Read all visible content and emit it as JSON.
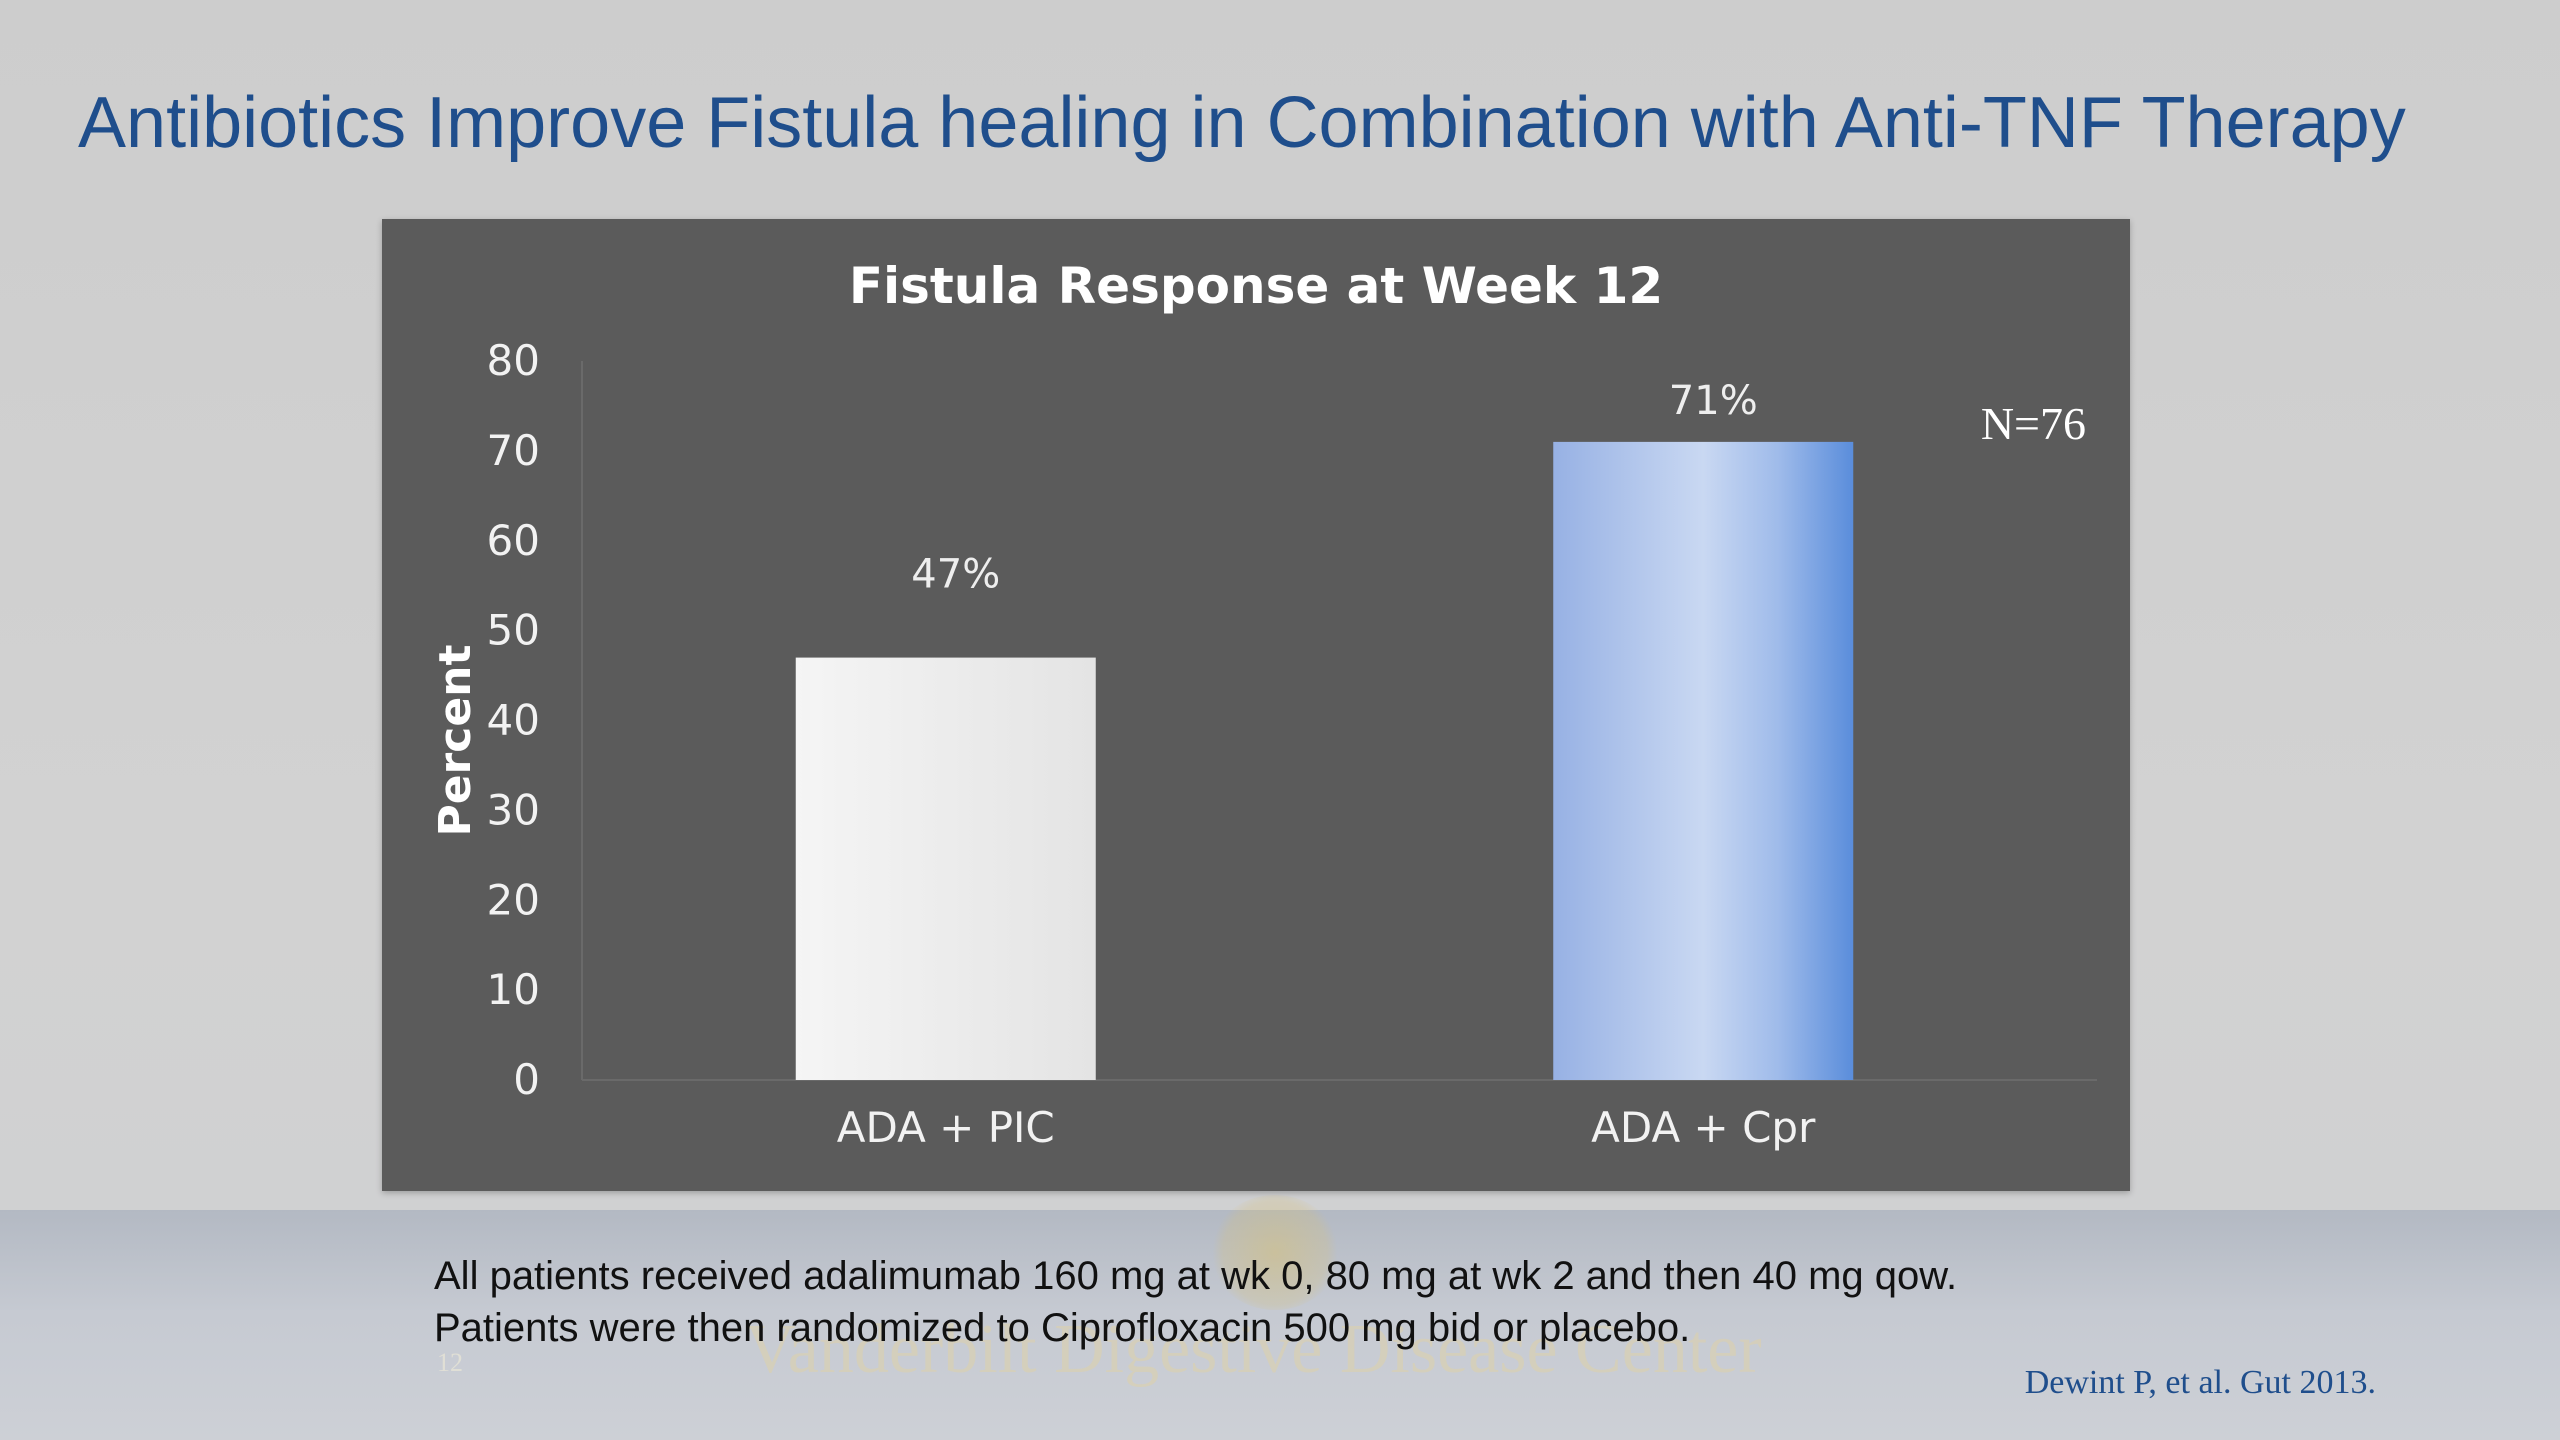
{
  "slide": {
    "title": "Antibiotics Improve Fistula healing in Combination with Anti-TNF Therapy",
    "footnote_line1": "All patients received adalimumab 160 mg at wk 0, 80 mg at wk 2 and then 40 mg qow.",
    "footnote_line2": "Patients were then randomized to Ciprofloxacin 500 mg bid or placebo.",
    "citation": "Dewint P, et al. Gut 2013.",
    "page_number": "12",
    "watermark": "Vanderbilt Digestive Disease Center"
  },
  "chart_data": {
    "type": "bar",
    "title": "Fistula Response at Week 12",
    "ylabel": "Percent",
    "xlabel": "",
    "categories": [
      "ADA + PIC",
      "ADA + Cpr"
    ],
    "values": [
      47,
      71
    ],
    "data_labels": [
      "47%",
      "71%"
    ],
    "ylim": [
      0,
      80
    ],
    "yticks": [
      0,
      10,
      20,
      30,
      40,
      50,
      60,
      70,
      80
    ],
    "grid": false,
    "annotation": "N=76",
    "bar_colors": [
      "#eeeeee",
      "#8fb0e6"
    ],
    "background": "#5b5b5b"
  }
}
